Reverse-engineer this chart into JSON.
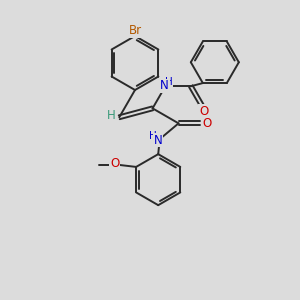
{
  "bg_color": "#dcdcdc",
  "bond_color": "#2a2a2a",
  "bond_width": 1.4,
  "atom_colors": {
    "Br": "#b35900",
    "N": "#0000cc",
    "O": "#cc0000",
    "H_vinyl": "#3a9a7a",
    "C": "#2a2a2a"
  },
  "figsize": [
    3.0,
    3.0
  ],
  "dpi": 100,
  "xlim": [
    0,
    10
  ],
  "ylim": [
    0,
    10
  ]
}
